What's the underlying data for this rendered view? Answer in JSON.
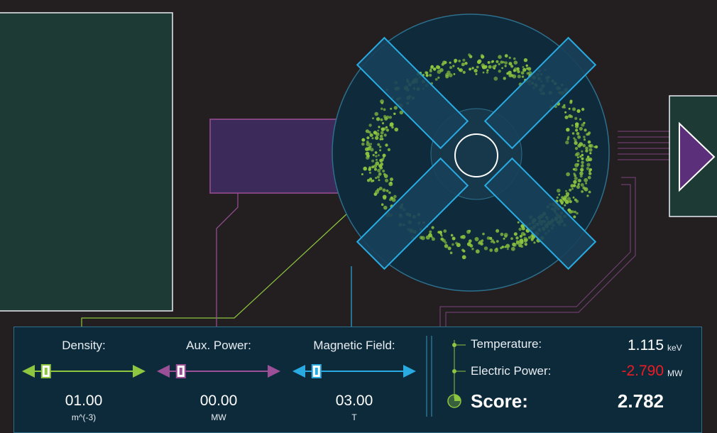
{
  "colors": {
    "background": "#231f20",
    "density": "#8dc63f",
    "aux_power": "#9b4f96",
    "magnetic_field": "#29abe2",
    "negative_value": "#ed1c24",
    "plasma": "#8dc63f"
  },
  "controls": [
    {
      "label": "Density:",
      "value": "01.00",
      "unit": "m^(-3)",
      "color": "#8dc63f",
      "position": 0.12
    },
    {
      "label": "Aux. Power:",
      "value": "00.00",
      "unit": "MW",
      "color": "#9b4f96",
      "position": 0.12
    },
    {
      "label": "Magnetic Field:",
      "value": "03.00",
      "unit": "T",
      "color": "#29abe2",
      "position": 0.12
    }
  ],
  "stats": {
    "temperature_label": "Temperature:",
    "temperature_value": "1.115",
    "temperature_unit": "keV",
    "electric_power_label": "Electric Power:",
    "electric_power_value": "-2.790",
    "electric_power_unit": "MW",
    "score_label": "Score:",
    "score_value": "2.782"
  },
  "icons": {
    "output_arrow": "play-triangle-icon",
    "score_marker": "score-node-icon"
  }
}
